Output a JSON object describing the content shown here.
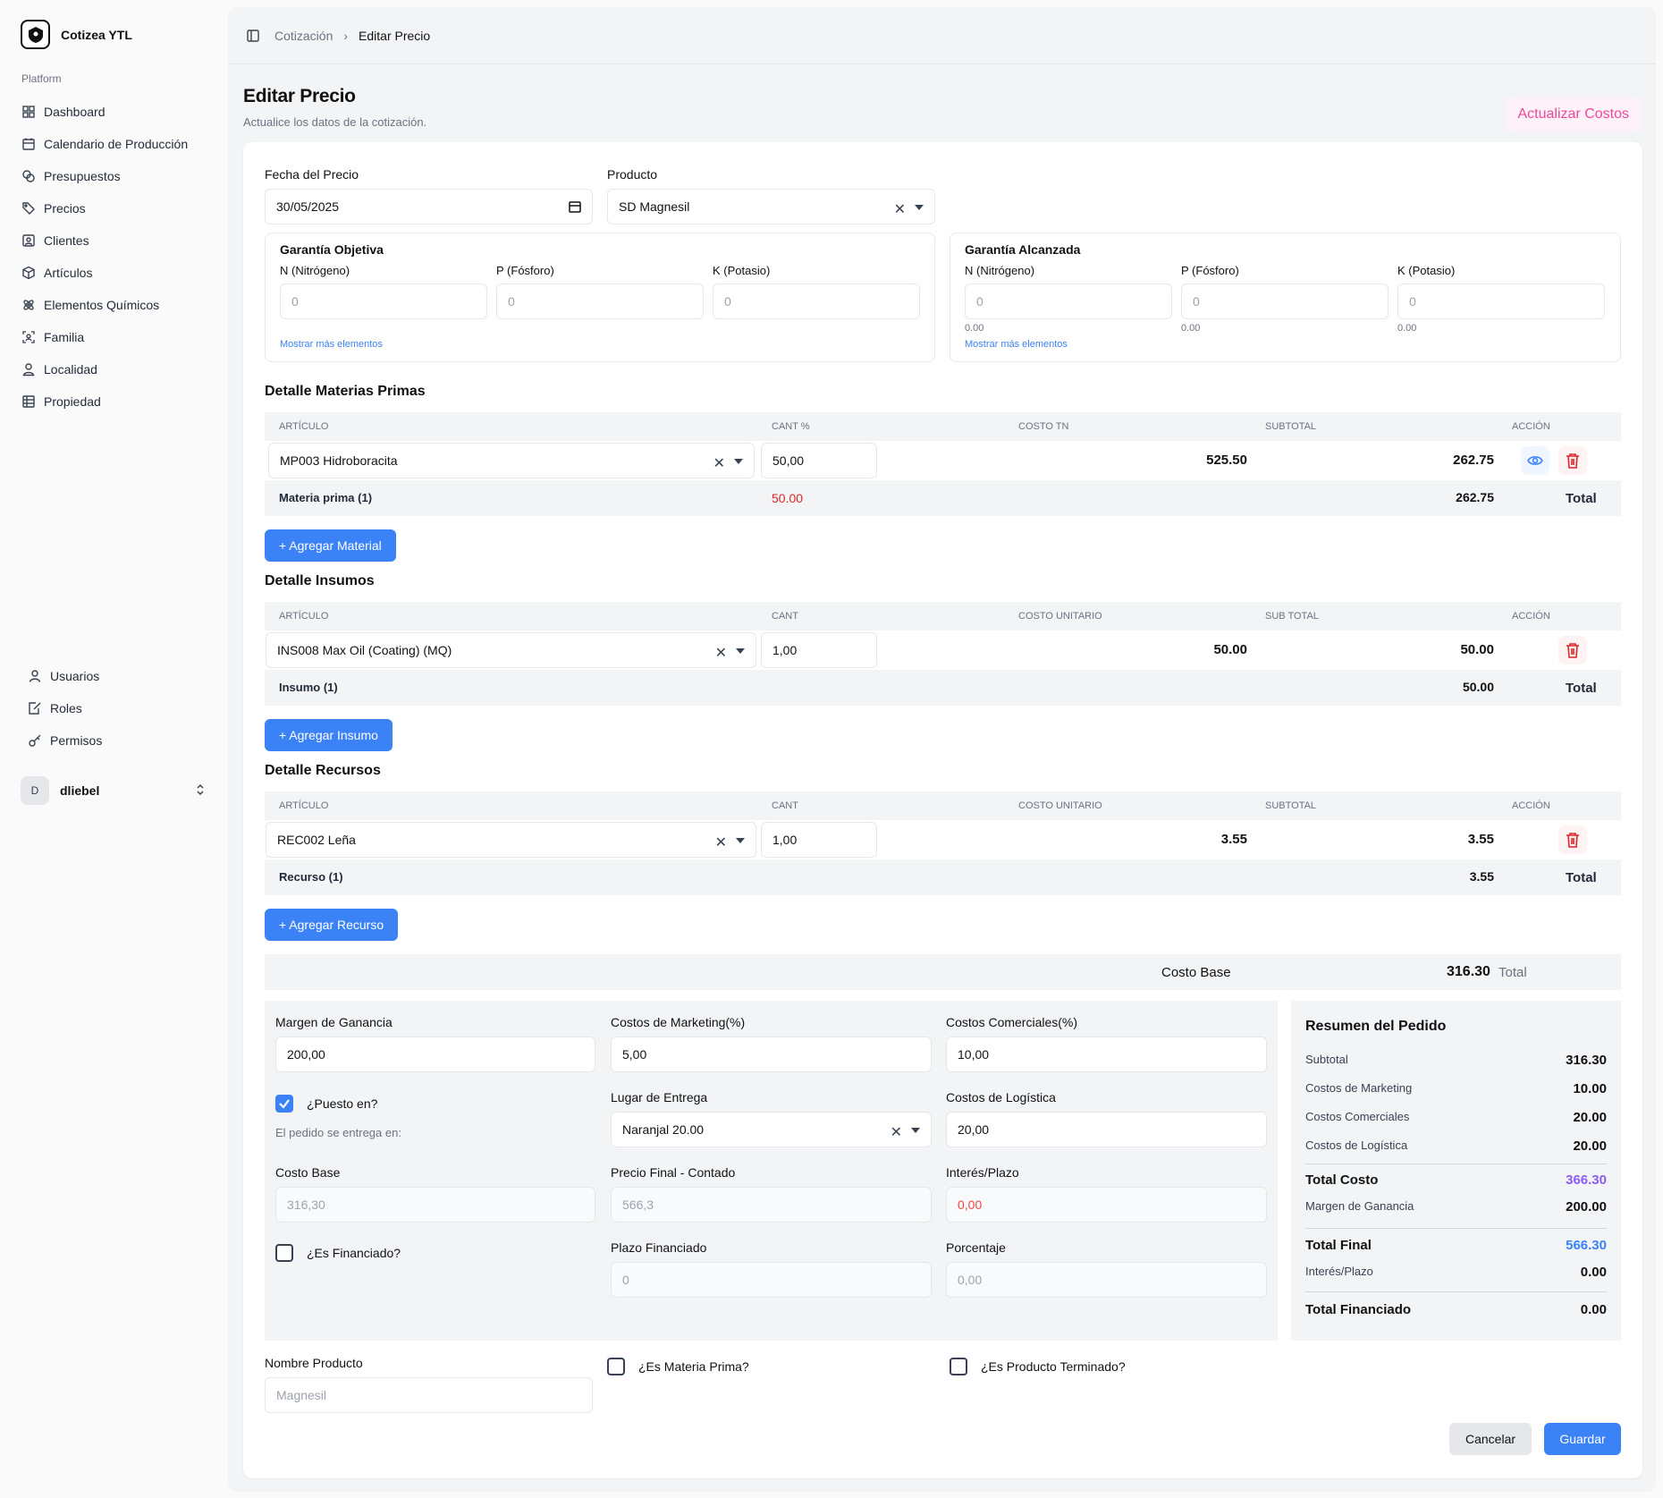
{
  "app": {
    "name": "Cotizea YTL"
  },
  "sidebar": {
    "section": "Platform",
    "items": [
      {
        "label": "Dashboard",
        "icon": "grid-icon"
      },
      {
        "label": "Calendario de Producción",
        "icon": "calendar-icon"
      },
      {
        "label": "Presupuestos",
        "icon": "coins-icon"
      },
      {
        "label": "Precios",
        "icon": "tags-icon"
      },
      {
        "label": "Clientes",
        "icon": "contact-icon"
      },
      {
        "label": "Artículos",
        "icon": "package-icon"
      },
      {
        "label": "Elementos Químicos",
        "icon": "atom-icon"
      },
      {
        "label": "Familia",
        "icon": "users-scan-icon"
      },
      {
        "label": "Localidad",
        "icon": "user-pin-icon"
      },
      {
        "label": "Propiedad",
        "icon": "table-icon"
      }
    ],
    "admin_items": [
      {
        "label": "Usuarios",
        "icon": "user-icon"
      },
      {
        "label": "Roles",
        "icon": "file-edit-icon"
      },
      {
        "label": "Permisos",
        "icon": "key-icon"
      }
    ],
    "user": {
      "initial": "D",
      "name": "dliebel"
    }
  },
  "breadcrumb": {
    "parent": "Cotización",
    "current": "Editar Precio"
  },
  "page": {
    "title": "Editar Precio",
    "subtitle": "Actualice los datos de la cotización.",
    "update_button": "Actualizar Costos"
  },
  "form": {
    "fecha_label": "Fecha del Precio",
    "fecha_value": "30/05/2025",
    "producto_label": "Producto",
    "producto_value": "SD Magnesil"
  },
  "garantia_objetiva": {
    "title": "Garantía Objetiva",
    "fields": [
      {
        "label": "N (Nitrógeno)",
        "placeholder": "0"
      },
      {
        "label": "P (Fósforo)",
        "placeholder": "0"
      },
      {
        "label": "K (Potasio)",
        "placeholder": "0"
      }
    ],
    "more_link": "Mostrar más elementos"
  },
  "garantia_alcanzada": {
    "title": "Garantía Alcanzada",
    "fields": [
      {
        "label": "N (Nitrógeno)",
        "placeholder": "0",
        "value": "0.00"
      },
      {
        "label": "P (Fósforo)",
        "placeholder": "0",
        "value": "0.00"
      },
      {
        "label": "K (Potasio)",
        "placeholder": "0",
        "value": "0.00"
      }
    ],
    "more_link": "Mostrar más elementos"
  },
  "materias": {
    "title": "Detalle Materias Primas",
    "headers": [
      "ARTÍCULO",
      "CANT %",
      "COSTO TN",
      "SUBTOTAL",
      "ACCIÓN"
    ],
    "rows": [
      {
        "articulo": "MP003 Hidroboracita",
        "cant": "50,00",
        "costo": "525.50",
        "subtotal": "262.75"
      }
    ],
    "footer": {
      "label": "Materia prima (1)",
      "cant_total": "50.00",
      "subtotal": "262.75",
      "total": "Total"
    },
    "add_button": "+ Agregar Material"
  },
  "insumos": {
    "title": "Detalle Insumos",
    "headers": [
      "ARTÍCULO",
      "CANT",
      "COSTO UNITARIO",
      "SUB TOTAL",
      "ACCIÓN"
    ],
    "rows": [
      {
        "articulo": "INS008 Max Oil (Coating) (MQ)",
        "cant": "1,00",
        "costo": "50.00",
        "subtotal": "50.00"
      }
    ],
    "footer": {
      "label": "Insumo (1)",
      "subtotal": "50.00",
      "total": "Total"
    },
    "add_button": "+ Agregar Insumo"
  },
  "recursos": {
    "title": "Detalle Recursos",
    "headers": [
      "ARTÍCULO",
      "CANT",
      "COSTO UNITARIO",
      "SUBTOTAL",
      "ACCIÓN"
    ],
    "rows": [
      {
        "articulo": "REC002 Leña",
        "cant": "1,00",
        "costo": "3.55",
        "subtotal": "3.55"
      }
    ],
    "footer": {
      "label": "Recurso (1)",
      "subtotal": "3.55",
      "total": "Total"
    },
    "add_button": "+ Agregar Recurso"
  },
  "costo_base_bar": {
    "label": "Costo Base",
    "value": "316.30",
    "suffix": "Total"
  },
  "pricing": {
    "margen_label": "Margen de Ganancia",
    "margen_value": "200,00",
    "marketing_label": "Costos de Marketing(%)",
    "marketing_value": "5,00",
    "comerciales_label": "Costos Comerciales(%)",
    "comerciales_value": "10,00",
    "puesto_label": "¿Puesto en?",
    "puesto_checked": true,
    "entrega_note": "El pedido se entrega en:",
    "lugar_label": "Lugar de Entrega",
    "lugar_value": "Naranjal 20.00",
    "logistica_label": "Costos de Logística",
    "logistica_value": "20,00",
    "costo_base_label": "Costo Base",
    "costo_base_value": "316,30",
    "precio_final_label": "Precio Final - Contado",
    "precio_final_value": "566,3",
    "interes_label": "Interés/Plazo",
    "interes_value": "0,00",
    "financiado_label": "¿Es Financiado?",
    "financiado_checked": false,
    "plazo_label": "Plazo Financiado",
    "plazo_value": "0",
    "porcentaje_label": "Porcentaje",
    "porcentaje_value": "0,00"
  },
  "resumen": {
    "title": "Resumen del Pedido",
    "subtotal_label": "Subtotal",
    "subtotal": "316.30",
    "marketing_label": "Costos de Marketing",
    "marketing": "10.00",
    "comerciales_label": "Costos Comerciales",
    "comerciales": "20.00",
    "logistica_label": "Costos de Logística",
    "logistica": "20.00",
    "total_costo_label": "Total Costo",
    "total_costo": "366.30",
    "margen_label": "Margen de Ganancia",
    "margen": "200.00",
    "total_final_label": "Total Final",
    "total_final": "566.30",
    "interes_label": "Interés/Plazo",
    "interes": "0.00",
    "total_financiado_label": "Total Financiado",
    "total_financiado": "0.00"
  },
  "bottom": {
    "nombre_label": "Nombre Producto",
    "nombre_placeholder": "Magnesil",
    "materia_prima_label": "¿Es Materia Prima?",
    "terminado_label": "¿Es Producto Terminado?",
    "cancel": "Cancelar",
    "save": "Guardar"
  },
  "colors": {
    "accent": "#3b82f6",
    "pink": "#ec4899",
    "danger": "#dc2626",
    "purple": "#8b5cf6"
  }
}
